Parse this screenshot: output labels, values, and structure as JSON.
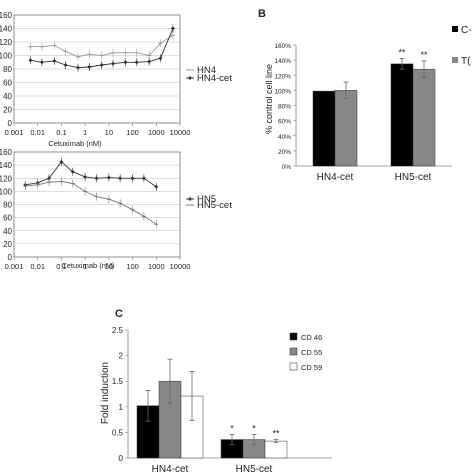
{
  "panels": {
    "B": {
      "letter": "B"
    },
    "C": {
      "letter": "C"
    }
  },
  "chart_data": [
    {
      "id": "A1",
      "type": "line",
      "xlabel": "Cetuximab (nM)",
      "ylabel": "",
      "xscale": "log",
      "xlim": [
        0.001,
        10000
      ],
      "ylim": [
        0,
        160
      ],
      "xticks": [
        "0.001",
        "0.01",
        "0.1",
        "1",
        "10",
        "100",
        "1000",
        "10000"
      ],
      "yticks": [
        "0",
        "20",
        "40",
        "60",
        "80",
        "100",
        "120",
        "140",
        "160"
      ],
      "grid": true,
      "legend": "right",
      "series": [
        {
          "name": "HN4",
          "color": "#9a9a9a",
          "marker": "dash",
          "x": [
            0.005,
            0.015,
            0.05,
            0.15,
            0.5,
            1.5,
            5,
            15,
            50,
            150,
            500,
            1500,
            5000
          ],
          "y": [
            113,
            113,
            115,
            106,
            98,
            102,
            100,
            104,
            104,
            104,
            100,
            118,
            130
          ]
        },
        {
          "name": "HN4-cet",
          "color": "#333333",
          "marker": "diamond",
          "x": [
            0.005,
            0.015,
            0.05,
            0.15,
            0.5,
            1.5,
            5,
            15,
            50,
            150,
            500,
            1500,
            5000
          ],
          "y": [
            93,
            90,
            92,
            86,
            82,
            83,
            86,
            88,
            90,
            90,
            91,
            96,
            140
          ]
        }
      ]
    },
    {
      "id": "A2",
      "type": "line",
      "xlabel": "Cetuximab (nM)",
      "ylabel": "",
      "xscale": "log",
      "xlim": [
        0.001,
        10000
      ],
      "ylim": [
        0,
        160
      ],
      "xticks": [
        "0.001",
        "0.01",
        "0.1",
        "1",
        "10",
        "100",
        "1000",
        "10000"
      ],
      "yticks": [
        "0",
        "20",
        "40",
        "60",
        "80",
        "100",
        "120",
        "140",
        "160"
      ],
      "grid": true,
      "legend": "right",
      "series": [
        {
          "name": "HN5",
          "color": "#333333",
          "marker": "diamond",
          "x": [
            0.003,
            0.01,
            0.03,
            0.1,
            0.3,
            1,
            3,
            10,
            30,
            100,
            300,
            1000
          ],
          "y": [
            110,
            113,
            120,
            145,
            130,
            122,
            120,
            121,
            120,
            120,
            120,
            107
          ]
        },
        {
          "name": "HN5-cet",
          "color": "#777777",
          "marker": "dash",
          "x": [
            0.003,
            0.01,
            0.03,
            0.1,
            0.3,
            1,
            3,
            10,
            30,
            100,
            300,
            1000
          ],
          "y": [
            108,
            110,
            114,
            115,
            112,
            100,
            92,
            88,
            82,
            72,
            62,
            50
          ]
        }
      ]
    },
    {
      "id": "B",
      "type": "bar",
      "ylabel": "% control cell line",
      "categories": [
        "HN4-cet",
        "HN5-cet"
      ],
      "ylim": [
        0,
        160
      ],
      "yticks": [
        "0%",
        "20%",
        "40%",
        "60%",
        "80%",
        "100%",
        "120%",
        "140%",
        "160%"
      ],
      "legend": "right",
      "series": [
        {
          "name": "C",
          "legend_label": "C-",
          "color": "#000000",
          "values": [
            99,
            135
          ],
          "errors": [
            0,
            7
          ],
          "labels": [
            "",
            "**"
          ]
        },
        {
          "name": "T",
          "legend_label": "T(",
          "color": "#888888",
          "values": [
            100,
            128
          ],
          "errors": [
            11,
            11
          ],
          "labels": [
            "",
            "**"
          ]
        }
      ]
    },
    {
      "id": "C",
      "type": "bar",
      "ylabel": "Fold induction",
      "categories": [
        "HN4-cet",
        "HN5-cet"
      ],
      "ylim": [
        0,
        2.5
      ],
      "yticks": [
        "0",
        "0.5",
        "1",
        "1.5",
        "2",
        "2.5"
      ],
      "legend": "right",
      "series": [
        {
          "name": "CD 46",
          "color": "#000000",
          "values": [
            1.02,
            0.36
          ],
          "errors": [
            0.3,
            0.1
          ],
          "labels": [
            "",
            "*"
          ]
        },
        {
          "name": "CD 55",
          "color": "#888888",
          "values": [
            1.5,
            0.36
          ],
          "errors": [
            0.43,
            0.1
          ],
          "labels": [
            "",
            "*"
          ]
        },
        {
          "name": "CD 59",
          "color": "#ffffff",
          "values": [
            1.21,
            0.33
          ],
          "errors": [
            0.48,
            0.03
          ],
          "labels": [
            "",
            "**"
          ]
        }
      ]
    }
  ]
}
